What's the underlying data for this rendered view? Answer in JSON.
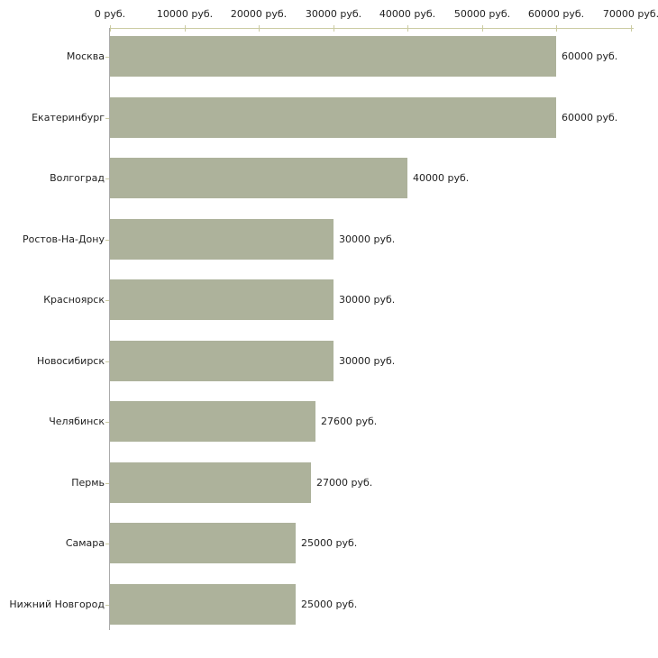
{
  "chart_data": {
    "type": "bar",
    "orientation": "horizontal",
    "title": "",
    "xlabel": "",
    "ylabel": "",
    "xlim": [
      0,
      70000
    ],
    "grid": false,
    "legend_position": "none",
    "x_tick_values": [
      0,
      10000,
      20000,
      30000,
      40000,
      50000,
      60000,
      70000
    ],
    "x_tick_labels": [
      "0 руб.",
      "10000 руб.",
      "20000 руб.",
      "30000 руб.",
      "40000 руб.",
      "50000 руб.",
      "60000 руб.",
      "70000 руб."
    ],
    "categories": [
      "Москва",
      "Екатеринбург",
      "Волгоград",
      "Ростов-На-Дону",
      "Красноярск",
      "Новосибирск",
      "Челябинск",
      "Пермь",
      "Самара",
      "Нижний Новгород"
    ],
    "values": [
      60000,
      60000,
      40000,
      30000,
      30000,
      30000,
      27600,
      27000,
      25000,
      25000
    ],
    "bar_labels": [
      "60000 руб.",
      "60000 руб.",
      "40000 руб.",
      "30000 руб.",
      "30000 руб.",
      "30000 руб.",
      "27600 руб.",
      "27000 руб.",
      "25000 руб.",
      "25000 руб."
    ],
    "colors": {
      "bar_fill": "#adb29b",
      "axis_line": "#cbcba2",
      "tick": "#cbcba2",
      "baseline": "#ababab",
      "text": "#222222",
      "background": "#ffffff"
    }
  }
}
